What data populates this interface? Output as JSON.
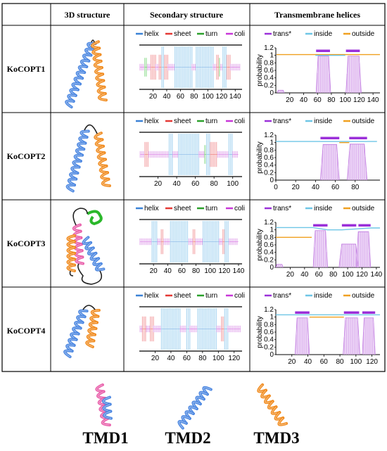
{
  "headers": {
    "col1": "",
    "col2": "3D structure",
    "col3": "Secondary structure",
    "col4": "Transmembrane helices"
  },
  "proteins": [
    {
      "name": "KoCOPT1",
      "structure_colors": [
        "#4a86e0",
        "#f08a1c"
      ],
      "secondary": {
        "xticks": [
          20,
          40,
          60,
          80,
          100,
          120,
          140
        ],
        "xmax": 150,
        "segments": [
          {
            "type": "coli",
            "start": 1,
            "end": 8
          },
          {
            "type": "turn",
            "start": 8,
            "end": 12
          },
          {
            "type": "coli",
            "start": 12,
            "end": 17
          },
          {
            "type": "sheet",
            "start": 17,
            "end": 24
          },
          {
            "type": "coli",
            "start": 24,
            "end": 29
          },
          {
            "type": "sheet",
            "start": 29,
            "end": 33
          },
          {
            "type": "helix",
            "start": 33,
            "end": 37
          },
          {
            "type": "sheet",
            "start": 37,
            "end": 42
          },
          {
            "type": "coli",
            "start": 42,
            "end": 52
          },
          {
            "type": "helix",
            "start": 52,
            "end": 77
          },
          {
            "type": "coli",
            "start": 77,
            "end": 83
          },
          {
            "type": "helix",
            "start": 83,
            "end": 108
          },
          {
            "type": "coli",
            "start": 108,
            "end": 113
          },
          {
            "type": "sheet",
            "start": 113,
            "end": 117
          },
          {
            "type": "turn",
            "start": 117,
            "end": 119
          },
          {
            "type": "coli",
            "start": 119,
            "end": 122
          },
          {
            "type": "helix",
            "start": 122,
            "end": 128
          },
          {
            "type": "sheet",
            "start": 128,
            "end": 133
          },
          {
            "type": "coli",
            "start": 133,
            "end": 147
          }
        ]
      },
      "tmhmm": {
        "xticks": [
          20,
          40,
          60,
          80,
          100,
          120,
          140
        ],
        "xmax": 150,
        "yticks": [
          0,
          0.2,
          0.4,
          0.6,
          0.8,
          1,
          1.2
        ],
        "trans_bars": [
          [
            58,
            78
          ],
          [
            101,
            121
          ]
        ],
        "inside_line": [
          [
            57,
            1.0
          ],
          [
            80,
            1.0
          ],
          [
            100,
            1.0
          ]
        ],
        "outside_line": [
          [
            1,
            1.02
          ],
          [
            56,
            1.02
          ],
          [
            122,
            1.02
          ],
          [
            150,
            1.02
          ]
        ],
        "peaks": [
          [
            58,
            79,
            0.98
          ],
          [
            101,
            123,
            0.98
          ]
        ],
        "bumps": [
          [
            2,
            12,
            0.07
          ]
        ]
      }
    },
    {
      "name": "KoCOPT2",
      "structure_colors": [
        "#4a86e0",
        "#f08a1c"
      ],
      "secondary": {
        "xticks": [
          20,
          40,
          60,
          80,
          100
        ],
        "xmax": 110,
        "segments": [
          {
            "type": "coli",
            "start": 1,
            "end": 6
          },
          {
            "type": "sheet",
            "start": 6,
            "end": 10
          },
          {
            "type": "coli",
            "start": 10,
            "end": 32
          },
          {
            "type": "helix",
            "start": 32,
            "end": 36
          },
          {
            "type": "coli",
            "start": 36,
            "end": 42
          },
          {
            "type": "helix",
            "start": 42,
            "end": 64
          },
          {
            "type": "coli",
            "start": 64,
            "end": 70
          },
          {
            "type": "turn",
            "start": 70,
            "end": 72
          },
          {
            "type": "helix",
            "start": 72,
            "end": 76
          },
          {
            "type": "sheet",
            "start": 76,
            "end": 84
          },
          {
            "type": "coli",
            "start": 84,
            "end": 96
          },
          {
            "type": "helix",
            "start": 96,
            "end": 100
          },
          {
            "type": "coli",
            "start": 100,
            "end": 106
          }
        ]
      },
      "tmhmm": {
        "xticks": [
          0,
          20,
          40,
          60,
          80
        ],
        "xmax": 105,
        "yticks": [
          0,
          0.2,
          0.4,
          0.6,
          0.8,
          1,
          1.2
        ],
        "trans_bars": [
          [
            45,
            64
          ],
          [
            74,
            92
          ]
        ],
        "inside_line": [
          [
            0,
            1.03
          ],
          [
            102,
            1.03
          ]
        ],
        "outside_line": [
          [
            64,
            1.0
          ],
          [
            74,
            1.0
          ]
        ],
        "peaks": [
          [
            45,
            64,
            0.95
          ],
          [
            72,
            92,
            0.96
          ]
        ],
        "bumps": []
      }
    },
    {
      "name": "KoCOPT3",
      "structure_colors": [
        "#e85aa8",
        "#4a86e0",
        "#f08a1c",
        "#2bb82b"
      ],
      "secondary": {
        "xticks": [
          20,
          40,
          60,
          80,
          100,
          120,
          140
        ],
        "xmax": 145,
        "segments": [
          {
            "type": "coli",
            "start": 1,
            "end": 18
          },
          {
            "type": "helix",
            "start": 18,
            "end": 26
          },
          {
            "type": "coli",
            "start": 26,
            "end": 31
          },
          {
            "type": "sheet",
            "start": 31,
            "end": 35
          },
          {
            "type": "coli",
            "start": 35,
            "end": 44
          },
          {
            "type": "helix",
            "start": 44,
            "end": 70
          },
          {
            "type": "coli",
            "start": 70,
            "end": 76
          },
          {
            "type": "sheet",
            "start": 76,
            "end": 80
          },
          {
            "type": "coli",
            "start": 80,
            "end": 90
          },
          {
            "type": "helix",
            "start": 90,
            "end": 113
          },
          {
            "type": "coli",
            "start": 113,
            "end": 118
          },
          {
            "type": "sheet",
            "start": 118,
            "end": 121
          },
          {
            "type": "helix",
            "start": 121,
            "end": 127
          },
          {
            "type": "coli",
            "start": 127,
            "end": 140
          }
        ]
      },
      "tmhmm": {
        "xticks": [
          20,
          40,
          60,
          80,
          100,
          120,
          140
        ],
        "xmax": 145,
        "yticks": [
          0,
          0.2,
          0.4,
          0.6,
          0.8,
          1,
          1.2
        ],
        "trans_bars": [
          [
            52,
            72
          ],
          [
            92,
            112
          ],
          [
            115,
            132
          ]
        ],
        "inside_line": [
          [
            0,
            1.06
          ],
          [
            52,
            1.06
          ],
          [
            72,
            1.0
          ],
          [
            92,
            1.0
          ],
          [
            132,
            1.05
          ],
          [
            145,
            1.05
          ]
        ],
        "outside_line": [
          [
            0,
            0.8
          ],
          [
            50,
            0.8
          ]
        ],
        "peaks": [
          [
            52,
            72,
            0.98
          ],
          [
            88,
            115,
            0.62
          ],
          [
            112,
            132,
            0.95
          ]
        ],
        "bumps": [
          [
            0,
            10,
            0.08
          ]
        ]
      }
    },
    {
      "name": "KoCOPT4",
      "structure_colors": [
        "#4a86e0",
        "#f08a1c"
      ],
      "secondary": {
        "xticks": [
          20,
          40,
          60,
          80,
          100,
          120
        ],
        "xmax": 130,
        "segments": [
          {
            "type": "coli",
            "start": 1,
            "end": 4
          },
          {
            "type": "sheet",
            "start": 4,
            "end": 9
          },
          {
            "type": "coli",
            "start": 9,
            "end": 14
          },
          {
            "type": "sheet",
            "start": 14,
            "end": 18
          },
          {
            "type": "coli",
            "start": 18,
            "end": 28
          },
          {
            "type": "helix",
            "start": 28,
            "end": 52
          },
          {
            "type": "coli",
            "start": 52,
            "end": 60
          },
          {
            "type": "helix",
            "start": 60,
            "end": 64
          },
          {
            "type": "coli",
            "start": 64,
            "end": 74
          },
          {
            "type": "helix",
            "start": 74,
            "end": 98
          },
          {
            "type": "coli",
            "start": 98,
            "end": 104
          },
          {
            "type": "sheet",
            "start": 104,
            "end": 108
          },
          {
            "type": "helix",
            "start": 108,
            "end": 112
          },
          {
            "type": "coli",
            "start": 112,
            "end": 128
          }
        ]
      },
      "tmhmm": {
        "xticks": [
          20,
          40,
          60,
          80,
          100,
          120
        ],
        "xmax": 130,
        "yticks": [
          0,
          0.2,
          0.4,
          0.6,
          0.8,
          1,
          1.2
        ],
        "trans_bars": [
          [
            24,
            42
          ],
          [
            85,
            104
          ],
          [
            108,
            124
          ]
        ],
        "inside_line": [
          [
            0,
            1.06
          ],
          [
            130,
            1.06
          ]
        ],
        "outside_line": [
          [
            42,
            1.0
          ],
          [
            85,
            1.0
          ]
        ],
        "peaks": [
          [
            24,
            42,
            0.98
          ],
          [
            84,
            105,
            0.98
          ],
          [
            108,
            124,
            0.98
          ]
        ],
        "bumps": []
      }
    }
  ],
  "secondary_legend": [
    {
      "label": "helix",
      "color": "#3b82d6"
    },
    {
      "label": "sheet",
      "color": "#e53935"
    },
    {
      "label": "turn",
      "color": "#2ca02c"
    },
    {
      "label": "coli",
      "color": "#c837d8"
    }
  ],
  "tmhmm_legend": [
    {
      "label": "trans*",
      "color": "#9b30d9"
    },
    {
      "label": "inside",
      "color": "#6ec6e6"
    },
    {
      "label": "outside",
      "color": "#f0a020"
    }
  ],
  "tmhmm_ylabel": "probability",
  "tmd_legend": [
    {
      "label": "TMD1",
      "colors": [
        "#e85aa8",
        "#4a86e0"
      ]
    },
    {
      "label": "TMD2",
      "colors": [
        "#4a86e0"
      ]
    },
    {
      "label": "TMD3",
      "colors": [
        "#f08a1c"
      ]
    }
  ]
}
